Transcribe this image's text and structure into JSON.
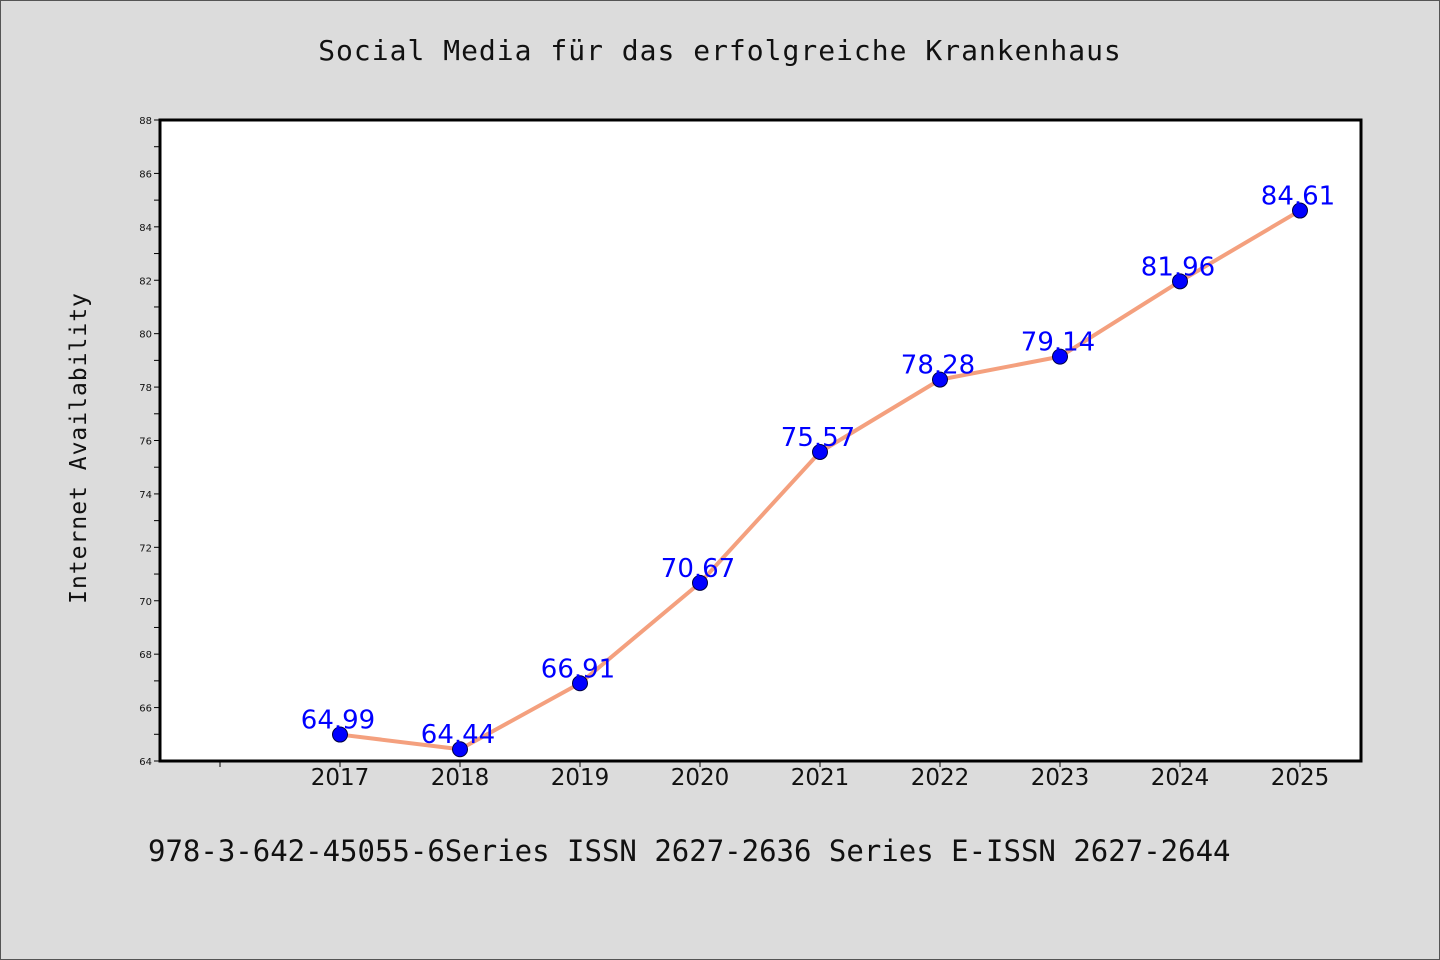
{
  "chart_data": {
    "type": "line",
    "title": "Social Media für das erfolgreiche Krankenhaus",
    "xlabel": "",
    "ylabel": "Internet Availability",
    "categories": [
      "2017",
      "2018",
      "2019",
      "2020",
      "2021",
      "2022",
      "2023",
      "2024",
      "2025"
    ],
    "series": [
      {
        "values": [
          64.99,
          64.44,
          66.91,
          70.67,
          75.57,
          78.28,
          79.14,
          81.96,
          84.61
        ],
        "data_labels": [
          "64.99",
          "64.44",
          "66.91",
          "70.67",
          "75.57",
          "78.28",
          "79.14",
          "81.96",
          "84.61"
        ]
      }
    ],
    "ylim": [
      64,
      88
    ],
    "yticks": [
      "64",
      "66",
      "68",
      "70",
      "72",
      "74",
      "76",
      "78",
      "80",
      "82",
      "84",
      "86",
      "88"
    ],
    "grid": false,
    "line_color": "#f4a07e",
    "marker_color": "#0000ff",
    "label_color": "#0000ff"
  },
  "footer": {
    "text": "978-3-642-45055-6Series ISSN 2627-2636 Series E-ISSN 2627-2644"
  },
  "background_color": "#dcdcdc"
}
